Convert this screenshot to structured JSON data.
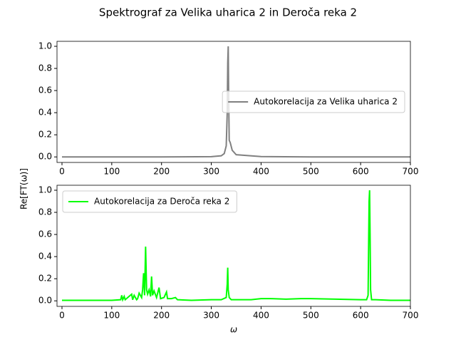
{
  "title": "Spektrograf za Velika uharica 2 in Deroča reka 2",
  "chart_data": [
    {
      "type": "line",
      "x": [
        0,
        100,
        200,
        300,
        320,
        326,
        330,
        332,
        333,
        334,
        335,
        336,
        338,
        342,
        350,
        400,
        500,
        600,
        700
      ],
      "series": [
        {
          "name": "Autokorelacija za Velika uharica 2",
          "color": "#808080",
          "values": [
            0,
            0,
            0,
            0.002,
            0.01,
            0.03,
            0.1,
            0.4,
            0.85,
            1.0,
            0.5,
            0.15,
            0.13,
            0.06,
            0.02,
            0.003,
            0,
            0,
            0
          ]
        }
      ],
      "xlim": [
        -10,
        700
      ],
      "xticks": [
        0,
        100,
        200,
        300,
        400,
        500,
        600,
        700
      ],
      "ylim": [
        -0.05,
        1.045
      ],
      "yticks": [
        {
          "value": 0,
          "label": "0.0"
        },
        0.2,
        0.4,
        0.6,
        0.8,
        {
          "value": 1,
          "label": "1.0"
        }
      ],
      "legend": "center right",
      "grid": false
    },
    {
      "type": "line",
      "x": [
        0,
        50,
        100,
        118,
        120,
        122,
        125,
        127,
        140,
        142,
        145,
        150,
        152,
        155,
        160,
        162,
        164,
        166,
        168,
        170,
        172,
        175,
        178,
        180,
        182,
        185,
        190,
        195,
        198,
        205,
        210,
        212,
        220,
        228,
        232,
        260,
        300,
        320,
        330,
        332,
        333,
        334,
        336,
        340,
        380,
        400,
        420,
        450,
        480,
        500,
        550,
        600,
        612,
        615,
        617,
        618,
        619,
        620,
        622,
        630,
        660,
        700
      ],
      "series": [
        {
          "name": "Autokorelacija za Deroča reka 2",
          "color": "#00ff00",
          "values": [
            0.005,
            0.005,
            0.005,
            0.01,
            0.05,
            0.01,
            0.04,
            0.01,
            0.06,
            0.01,
            0.05,
            0.01,
            0.02,
            0.07,
            0.03,
            0.1,
            0.25,
            0.05,
            0.49,
            0.1,
            0.06,
            0.1,
            0.04,
            0.22,
            0.05,
            0.09,
            0.03,
            0.12,
            0.02,
            0.03,
            0.08,
            0.02,
            0.02,
            0.03,
            0.01,
            0.005,
            0.01,
            0.01,
            0.03,
            0.15,
            0.3,
            0.1,
            0.03,
            0.01,
            0.01,
            0.02,
            0.02,
            0.015,
            0.02,
            0.02,
            0.015,
            0.01,
            0.01,
            0.05,
            0.9,
            1.0,
            0.6,
            0.1,
            0.01,
            0.01,
            0.005,
            0.005
          ]
        }
      ],
      "xlim": [
        -10,
        700
      ],
      "xticks": [
        0,
        100,
        200,
        300,
        400,
        500,
        600,
        700
      ],
      "ylim": [
        -0.05,
        1.045
      ],
      "yticks": [
        {
          "value": 0,
          "label": "0.0"
        },
        0.2,
        0.4,
        0.6,
        0.8,
        {
          "value": 1,
          "label": "1.0"
        }
      ],
      "xlabel": "ω",
      "ylabel": "Re[FT(ω)]",
      "legend": "upper left",
      "grid": false
    }
  ]
}
